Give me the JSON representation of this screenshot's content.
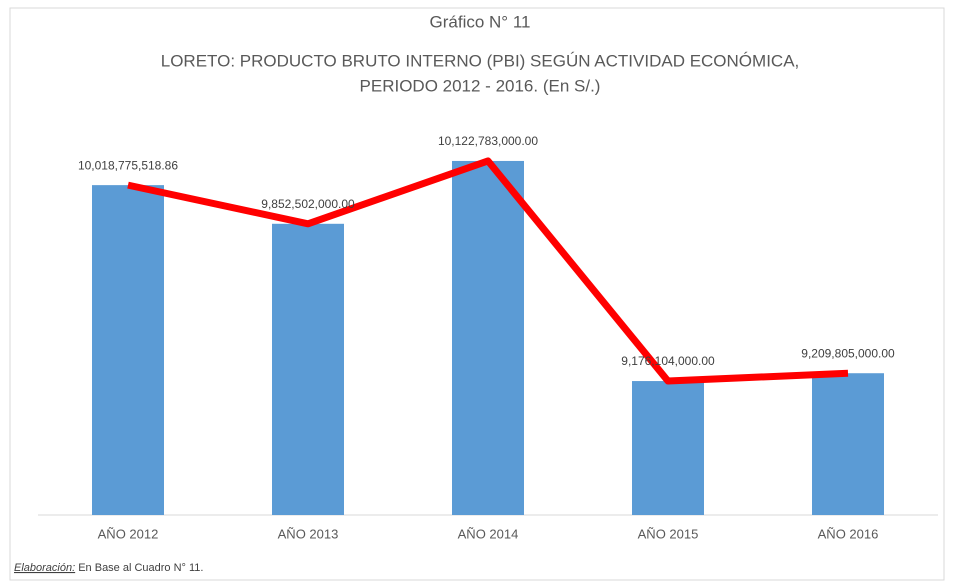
{
  "chart_data": {
    "type": "bar",
    "title": "Gráfico N° 11",
    "subtitle": [
      "LORETO: PRODUCTO BRUTO INTERNO (PBI) SEGÚN ACTIVIDAD ECONÓMICA,",
      "PERIODO 2012 - 2016.  (En S/.)"
    ],
    "categories": [
      "AÑO 2012",
      "AÑO 2013",
      "AÑO 2014",
      "AÑO 2015",
      "AÑO 2016"
    ],
    "values": [
      10018775518.86,
      9852502000,
      10122783000,
      9176104000,
      9209805000
    ],
    "value_labels": [
      "10,018,775,518.86",
      "9,852,502,000.00",
      "10,122,783,000.00",
      "9,176,104,000.00",
      "9,209,805,000.00"
    ],
    "color": "#5b9bd5",
    "line_color": "#ff0000",
    "ylim": [
      8600000000,
      10600000000
    ],
    "grid": false
  },
  "footer": {
    "label": "Elaboración:",
    "text": "En Base al Cuadro N° 11."
  }
}
